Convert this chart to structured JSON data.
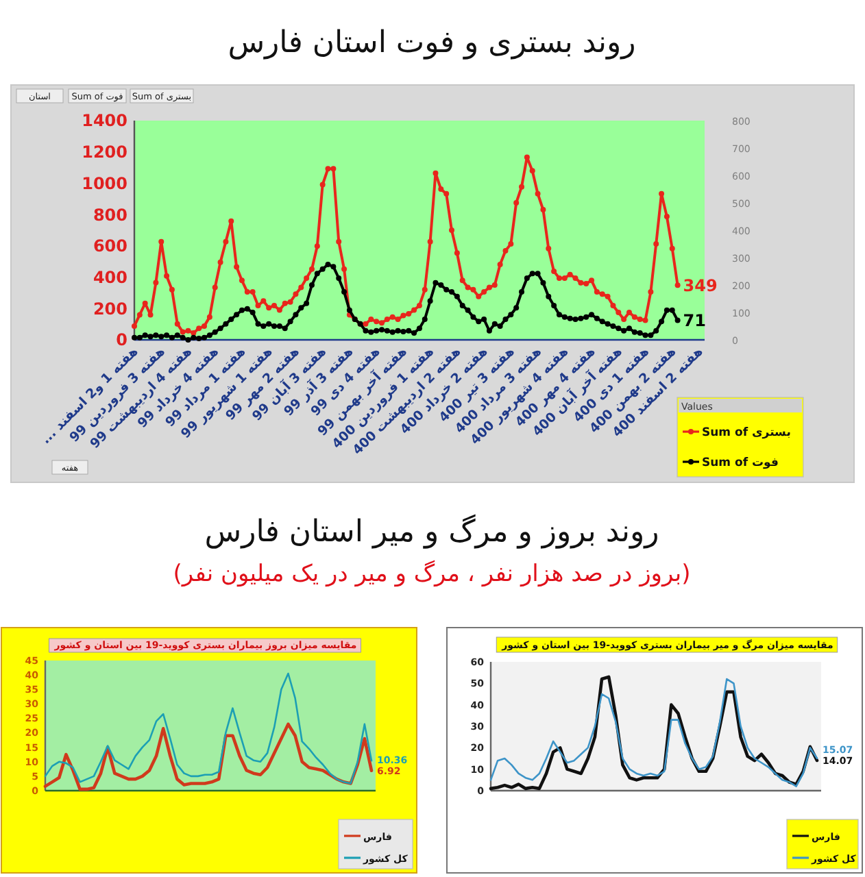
{
  "chart_data": [
    {
      "type": "line",
      "title": "روند بستری و فوت استان فارس",
      "categories": [
        "هفته 1 و2 اسفند ...",
        null,
        null,
        null,
        null,
        "هفته 3 فروردین 99",
        null,
        null,
        null,
        null,
        "هفته 4 اردیبهشت 99",
        null,
        null,
        null,
        null,
        "هفته 4 خرداد 99",
        null,
        null,
        null,
        null,
        "هفته 1 مرداد 99",
        null,
        null,
        null,
        null,
        "هفته 1 شهریور 99",
        null,
        null,
        null,
        null,
        "هفته 2 مهر 99",
        null,
        null,
        null,
        null,
        "هفته 3 آبان 99",
        null,
        null,
        null,
        null,
        "هفته 3 آذر 99",
        null,
        null,
        null,
        null,
        "هفته 4 دی 99",
        null,
        null,
        null,
        null,
        "هفته آخر بهمن 99",
        null,
        null,
        null,
        null,
        "هفته 1 فروردین 400",
        null,
        null,
        null,
        null,
        "هفته 2 اردیبهشت 400",
        null,
        null,
        null,
        null,
        "هفته 2 خرداد 400",
        null,
        null,
        null,
        null,
        "هفته 3 تیر 400",
        null,
        null,
        null,
        null,
        "هفته 3 مرداد 400",
        null,
        null,
        null,
        null,
        "هفته 4 شهریور 400",
        null,
        null,
        null,
        null,
        "هفته 4 مهر 400",
        null,
        null,
        null,
        null,
        "هفته آخر آبان 400",
        null,
        null,
        null,
        null,
        "هفته 1 دی 400",
        null,
        null,
        null,
        null,
        "هفته 2 بهمن 400",
        null,
        null,
        null,
        null,
        "هفته 2 اسفند 400"
      ],
      "series": [
        {
          "name": "Sum of بستری",
          "color": "#e8261c",
          "values": [
            88,
            160,
            233,
            160,
            365,
            627,
            408,
            320,
            102,
            50,
            58,
            44,
            73,
            88,
            146,
            335,
            496,
            627,
            758,
            466,
            379,
            306,
            306,
            219,
            248,
            204,
            219,
            190,
            233,
            242,
            292,
            335,
            394,
            452,
            598,
            991,
            1093,
            1093,
            627,
            452,
            160,
            131,
            102,
            102,
            131,
            117,
            108,
            131,
            146,
            131,
            155,
            166,
            190,
            219,
            320,
            627,
            1064,
            962,
            933,
            700,
            554,
            379,
            335,
            320,
            277,
            306,
            335,
            350,
            481,
            569,
            612,
            875,
            977,
            1166,
            1079,
            933,
            831,
            583,
            437,
            394,
            394,
            417,
            394,
            364,
            359,
            379,
            306,
            292,
            277,
            219,
            175,
            131,
            175,
            146,
            131,
            125,
            306,
            612,
            933,
            787,
            583,
            349,
            null,
            null,
            null,
            null
          ],
          "value_labels": [
            null,
            null,
            null,
            null,
            null,
            null,
            null,
            null,
            null,
            null,
            null,
            null,
            null,
            null,
            null,
            null,
            null,
            null,
            null,
            null,
            null,
            null,
            null,
            null,
            null,
            null,
            null,
            null,
            null,
            null,
            null,
            null,
            null,
            null,
            null,
            null,
            null,
            null,
            null,
            null,
            null,
            null,
            null,
            null,
            null,
            null,
            null,
            null,
            null,
            null,
            null,
            null,
            null,
            null,
            null,
            null,
            null,
            null,
            null,
            null,
            null,
            null,
            null,
            null,
            null,
            null,
            null,
            null,
            null,
            null,
            null,
            null,
            null,
            null,
            null,
            null,
            null,
            null,
            null,
            null,
            null,
            null,
            null,
            null,
            null,
            null,
            null,
            null,
            null,
            null,
            null,
            null,
            null,
            null,
            null,
            null,
            null,
            null,
            null,
            null,
            null,
            "349",
            null,
            null,
            null,
            null
          ]
        },
        {
          "name": "Sum of فوت",
          "color": "#000000",
          "axis": "y2",
          "values": [
            8,
            8,
            17,
            12,
            17,
            12,
            17,
            8,
            17,
            8,
            0,
            8,
            5,
            8,
            17,
            28,
            42,
            58,
            75,
            92,
            108,
            113,
            100,
            58,
            50,
            58,
            50,
            50,
            42,
            67,
            92,
            117,
            133,
            200,
            242,
            258,
            275,
            267,
            225,
            175,
            108,
            75,
            58,
            33,
            28,
            33,
            37,
            33,
            28,
            33,
            30,
            33,
            25,
            42,
            75,
            142,
            208,
            200,
            183,
            175,
            158,
            125,
            108,
            83,
            67,
            75,
            33,
            58,
            50,
            75,
            92,
            117,
            175,
            225,
            242,
            242,
            208,
            158,
            125,
            92,
            83,
            78,
            75,
            78,
            83,
            92,
            78,
            67,
            58,
            50,
            42,
            33,
            42,
            28,
            25,
            17,
            17,
            33,
            67,
            108,
            108,
            71,
            null,
            null,
            null,
            null
          ],
          "value_labels": [
            null,
            null,
            null,
            null,
            null,
            null,
            null,
            null,
            null,
            null,
            null,
            null,
            null,
            null,
            null,
            null,
            null,
            null,
            null,
            null,
            null,
            null,
            null,
            null,
            null,
            null,
            null,
            null,
            null,
            null,
            null,
            null,
            null,
            null,
            null,
            null,
            null,
            null,
            null,
            null,
            null,
            null,
            null,
            null,
            null,
            null,
            null,
            null,
            null,
            null,
            null,
            null,
            null,
            null,
            null,
            null,
            null,
            null,
            null,
            null,
            null,
            null,
            null,
            null,
            null,
            null,
            null,
            null,
            null,
            null,
            null,
            null,
            null,
            null,
            null,
            null,
            null,
            null,
            null,
            null,
            null,
            null,
            null,
            null,
            null,
            null,
            null,
            null,
            null,
            null,
            null,
            null,
            null,
            null,
            null,
            null,
            null,
            null,
            null,
            null,
            null,
            "71",
            null,
            null,
            null,
            null
          ]
        }
      ],
      "ylim": [
        0,
        1400
      ],
      "yticks": [
        0,
        200,
        400,
        600,
        800,
        1000,
        1200,
        1400
      ],
      "y2lim": [
        0,
        800
      ],
      "y2ticks": [
        0,
        100,
        200,
        300,
        400,
        500,
        600,
        700,
        800
      ],
      "marker": "circle",
      "legend": "bottom right",
      "legend_title": "Values",
      "annotations": [
        "استان",
        "Sum of فوت",
        "Sum of بستری",
        "هفته"
      ]
    },
    {
      "type": "other",
      "title": "روند بروز و مرگ و میر استان فارس",
      "subtitle": "(بروز در صد هزار نفر ، مرگ و میر در یک میلیون نفر)"
    },
    {
      "type": "line",
      "title": "مقایسه میزان بروز بیماران بستری کووید-19 بین استان و کشور",
      "categories": [
        null,
        null,
        null,
        null,
        null,
        null,
        null,
        null,
        null,
        null,
        null,
        null,
        null,
        null,
        null,
        null,
        null,
        null,
        null,
        null,
        null,
        null,
        null,
        null,
        null,
        null,
        null,
        null,
        null,
        null,
        null,
        null,
        null,
        null,
        null,
        null,
        null,
        null,
        null,
        null,
        null,
        null,
        null,
        null,
        null,
        null,
        null,
        null
      ],
      "series": [
        {
          "name": "فارس",
          "color": "#d03a1c",
          "values": [
            1.5,
            3,
            4.5,
            12.5,
            7,
            0.5,
            0.5,
            1,
            6,
            15,
            6,
            5,
            4,
            4,
            5,
            7,
            12,
            21.5,
            12,
            4,
            2,
            2.5,
            2.5,
            2.5,
            3,
            4,
            19,
            19,
            12,
            7,
            6,
            5.5,
            8,
            13,
            18,
            23,
            19,
            10,
            8,
            7.5,
            7,
            5.5,
            4,
            3,
            2.5,
            9,
            18,
            6.92
          ],
          "value_labels": [
            null,
            null,
            null,
            null,
            null,
            null,
            null,
            null,
            null,
            null,
            null,
            null,
            null,
            null,
            null,
            null,
            null,
            null,
            null,
            null,
            null,
            null,
            null,
            null,
            null,
            null,
            null,
            null,
            null,
            null,
            null,
            null,
            null,
            null,
            null,
            null,
            null,
            null,
            null,
            null,
            null,
            null,
            null,
            null,
            null,
            null,
            null,
            "6.92"
          ]
        },
        {
          "name": "کل کشور",
          "color": "#1c9fb4",
          "values": [
            5,
            8.5,
            10,
            9.5,
            8,
            3,
            4,
            5,
            10,
            15.5,
            10.5,
            9,
            7.5,
            12,
            15,
            17.5,
            24,
            26.5,
            18,
            9,
            6,
            5,
            5,
            5.5,
            5.5,
            6.5,
            20,
            28.5,
            20,
            12,
            10.5,
            10,
            13,
            22,
            35,
            40.5,
            32,
            17,
            14.5,
            11.5,
            9,
            6,
            4,
            3,
            2.5,
            10,
            23,
            10.36
          ],
          "value_labels": [
            null,
            null,
            null,
            null,
            null,
            null,
            null,
            null,
            null,
            null,
            null,
            null,
            null,
            null,
            null,
            null,
            null,
            null,
            null,
            null,
            null,
            null,
            null,
            null,
            null,
            null,
            null,
            null,
            null,
            null,
            null,
            null,
            null,
            null,
            null,
            null,
            null,
            null,
            null,
            null,
            null,
            null,
            null,
            null,
            null,
            null,
            null,
            "10.36"
          ]
        }
      ],
      "ylim": [
        0,
        45
      ],
      "yticks": [
        0,
        5,
        10,
        15,
        20,
        25,
        30,
        35,
        40,
        45
      ],
      "tick_labels": "y",
      "legend": "bottom right"
    },
    {
      "type": "line",
      "title": "مقایسه میزان مرگ و میر بیماران بستری کووید-19 بین استان و کشور",
      "categories": [
        null,
        null,
        null,
        null,
        null,
        null,
        null,
        null,
        null,
        null,
        null,
        null,
        null,
        null,
        null,
        null,
        null,
        null,
        null,
        null,
        null,
        null,
        null,
        null,
        null,
        null,
        null,
        null,
        null,
        null,
        null,
        null,
        null,
        null,
        null,
        null,
        null,
        null,
        null,
        null,
        null,
        null,
        null,
        null,
        null,
        null,
        null,
        null
      ],
      "series": [
        {
          "name": "فارس",
          "color": "#111111",
          "values": [
            1,
            1.5,
            2.5,
            1.5,
            3,
            1,
            1.5,
            1,
            8,
            18,
            20,
            10,
            9,
            8,
            15,
            25,
            52,
            53,
            35,
            12,
            6,
            5,
            6,
            6,
            6,
            10,
            40,
            36,
            25,
            15,
            9,
            9,
            15,
            30,
            46,
            46,
            25,
            16,
            14,
            17,
            13,
            8,
            7,
            4,
            3,
            9,
            20.5,
            14.07
          ],
          "value_labels": [
            null,
            null,
            null,
            null,
            null,
            null,
            null,
            null,
            null,
            null,
            null,
            null,
            null,
            null,
            null,
            null,
            null,
            null,
            null,
            null,
            null,
            null,
            null,
            null,
            null,
            null,
            null,
            null,
            null,
            null,
            null,
            null,
            null,
            null,
            null,
            null,
            null,
            null,
            null,
            null,
            null,
            null,
            null,
            null,
            null,
            null,
            null,
            "14.07"
          ]
        },
        {
          "name": "کل کشور",
          "color": "#3d94c8",
          "values": [
            5,
            14,
            15,
            12,
            8,
            6,
            5,
            8,
            15,
            23,
            18,
            13,
            14,
            17,
            20,
            30,
            45,
            43,
            32,
            15,
            10,
            8,
            7,
            8,
            7,
            9,
            33,
            33,
            22,
            15,
            10,
            11,
            16,
            32,
            52,
            50,
            30,
            20,
            15,
            13,
            11,
            8,
            5,
            4,
            2,
            8,
            20,
            15.07
          ],
          "value_labels": [
            null,
            null,
            null,
            null,
            null,
            null,
            null,
            null,
            null,
            null,
            null,
            null,
            null,
            null,
            null,
            null,
            null,
            null,
            null,
            null,
            null,
            null,
            null,
            null,
            null,
            null,
            null,
            null,
            null,
            null,
            null,
            null,
            null,
            null,
            null,
            null,
            null,
            null,
            null,
            null,
            null,
            null,
            null,
            null,
            null,
            null,
            null,
            "15.07"
          ]
        }
      ],
      "ylim": [
        0,
        60
      ],
      "yticks": [
        0,
        10,
        20,
        30,
        40,
        50,
        60
      ],
      "tick_labels": "y",
      "legend": "bottom right"
    }
  ]
}
